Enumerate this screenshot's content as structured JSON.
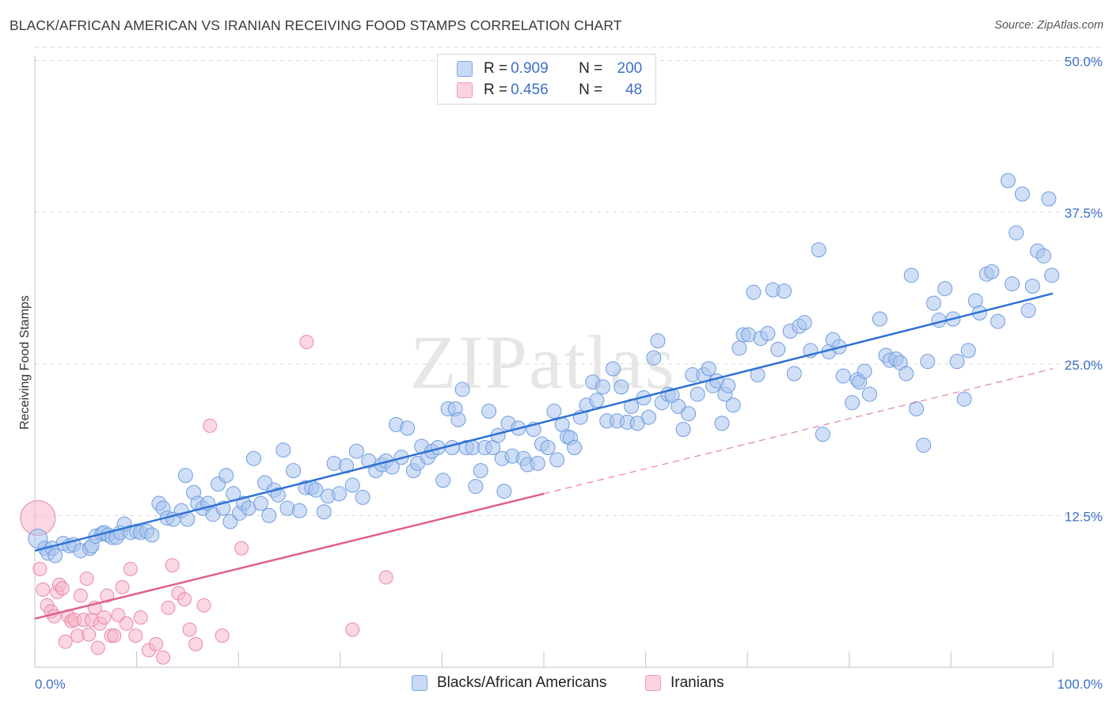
{
  "header": {
    "title": "BLACK/AFRICAN AMERICAN VS IRANIAN RECEIVING FOOD STAMPS CORRELATION CHART",
    "source": "Source: ZipAtlas.com"
  },
  "legend": {
    "rows": [
      {
        "r_label": "R = ",
        "r_value": "0.909",
        "n_label": "N = ",
        "n_value": "200",
        "color": "#a9c4ef"
      },
      {
        "r_label": "R = ",
        "r_value": "0.456",
        "n_label": "N = ",
        "n_value": "48",
        "color": "#f5b6c8"
      }
    ]
  },
  "bottom_legend": {
    "blacks": "Blacks/African Americans",
    "iranians": "Iranians"
  },
  "colors": {
    "blue_fill": "#a9c4ef",
    "blue_stroke": "#6f9ce0",
    "blue_line": "#2f72d6",
    "pink_fill": "#f5b6c8",
    "pink_stroke": "#e98aa8",
    "pink_line": "#e0608a",
    "tick_label": "#3d6fc8",
    "grid": "#d9d9d9"
  },
  "watermark": "ZIPatlas",
  "chart_data": {
    "type": "scatter",
    "title": "BLACK/AFRICAN AMERICAN VS IRANIAN RECEIVING FOOD STAMPS CORRELATION CHART",
    "xlabel": "",
    "ylabel": "Receiving Food Stamps",
    "xlim": [
      0,
      100
    ],
    "ylim": [
      0,
      52
    ],
    "x_tick_labels": [
      "0.0%",
      "100.0%"
    ],
    "y_ticks": [
      12.5,
      25.0,
      37.5,
      50.0
    ],
    "y_tick_labels": [
      "12.5%",
      "25.0%",
      "37.5%",
      "50.0%"
    ],
    "grid": true,
    "legend_position": "top-center",
    "series": [
      {
        "name": "Blacks/African Americans",
        "r": 0.909,
        "n": 200,
        "trend": {
          "x": [
            0,
            100
          ],
          "y": [
            9.6,
            30.8
          ],
          "style": "solid"
        },
        "points": [
          [
            0.3,
            10.6
          ],
          [
            1,
            9.8
          ],
          [
            1.3,
            9.4
          ],
          [
            1.7,
            9.8
          ],
          [
            2,
            9.2
          ],
          [
            2.8,
            10.2
          ],
          [
            3.4,
            10
          ],
          [
            3.8,
            10.1
          ],
          [
            4.5,
            9.6
          ],
          [
            5.4,
            9.8
          ],
          [
            5.6,
            10
          ],
          [
            6,
            10.8
          ],
          [
            6.6,
            11
          ],
          [
            6.8,
            11.1
          ],
          [
            7.2,
            10.9
          ],
          [
            7.6,
            10.7
          ],
          [
            8,
            10.7
          ],
          [
            8.4,
            11.1
          ],
          [
            8.8,
            11.8
          ],
          [
            9.4,
            11.1
          ],
          [
            10,
            11.2
          ],
          [
            10.4,
            11.1
          ],
          [
            11,
            11.2
          ],
          [
            11.5,
            10.9
          ],
          [
            12.2,
            13.5
          ],
          [
            12.6,
            13.1
          ],
          [
            13,
            12.3
          ],
          [
            13.6,
            12.2
          ],
          [
            14.4,
            12.9
          ],
          [
            14.8,
            15.8
          ],
          [
            15,
            12.2
          ],
          [
            15.6,
            14.4
          ],
          [
            16,
            13.5
          ],
          [
            16.5,
            13.1
          ],
          [
            17,
            13.5
          ],
          [
            17.5,
            12.6
          ],
          [
            18,
            15.1
          ],
          [
            18.5,
            13.1
          ],
          [
            18.8,
            15.8
          ],
          [
            19.2,
            12
          ],
          [
            19.5,
            14.3
          ],
          [
            20.1,
            12.7
          ],
          [
            20.5,
            13.5
          ],
          [
            21,
            13.1
          ],
          [
            21.5,
            17.2
          ],
          [
            22.2,
            13.5
          ],
          [
            22.6,
            15.2
          ],
          [
            23,
            12.5
          ],
          [
            23.5,
            14.6
          ],
          [
            23.9,
            14.2
          ],
          [
            24.4,
            17.9
          ],
          [
            24.8,
            13.1
          ],
          [
            25.4,
            16.2
          ],
          [
            26,
            12.9
          ],
          [
            26.6,
            14.8
          ],
          [
            27.2,
            14.8
          ],
          [
            27.6,
            14.6
          ],
          [
            28.4,
            12.8
          ],
          [
            28.8,
            14.1
          ],
          [
            29.4,
            16.8
          ],
          [
            29.9,
            14.3
          ],
          [
            30.6,
            16.6
          ],
          [
            31.2,
            15
          ],
          [
            31.6,
            17.8
          ],
          [
            32.2,
            14
          ],
          [
            32.8,
            17
          ],
          [
            33.5,
            16.2
          ],
          [
            34.1,
            16.7
          ],
          [
            34.5,
            17
          ],
          [
            35.1,
            16.5
          ],
          [
            35.5,
            20
          ],
          [
            36,
            17.3
          ],
          [
            36.6,
            19.7
          ],
          [
            37.2,
            16.2
          ],
          [
            37.6,
            16.8
          ],
          [
            38,
            18.2
          ],
          [
            38.6,
            17.3
          ],
          [
            39,
            17.8
          ],
          [
            39.6,
            18.1
          ],
          [
            40.1,
            15.4
          ],
          [
            40.6,
            21.3
          ],
          [
            41,
            18.1
          ],
          [
            41.3,
            21.3
          ],
          [
            41.6,
            20.4
          ],
          [
            42,
            22.9
          ],
          [
            42.4,
            18.1
          ],
          [
            43,
            18.1
          ],
          [
            43.3,
            14.9
          ],
          [
            43.8,
            16.2
          ],
          [
            44.2,
            18.1
          ],
          [
            44.6,
            21.1
          ],
          [
            45,
            18.1
          ],
          [
            45.5,
            19.1
          ],
          [
            45.9,
            17.2
          ],
          [
            46.1,
            14.5
          ],
          [
            46.5,
            20.1
          ],
          [
            46.9,
            17.4
          ],
          [
            47.5,
            19.7
          ],
          [
            48,
            17.2
          ],
          [
            48.4,
            16.7
          ],
          [
            49,
            19.6
          ],
          [
            49.4,
            16.8
          ],
          [
            49.8,
            18.4
          ],
          [
            50.4,
            18.1
          ],
          [
            51,
            21.1
          ],
          [
            51.3,
            17.1
          ],
          [
            51.8,
            20
          ],
          [
            52.3,
            19
          ],
          [
            52.6,
            18.9
          ],
          [
            53,
            18.1
          ],
          [
            53.6,
            20.6
          ],
          [
            54.2,
            21.6
          ],
          [
            54.8,
            23.5
          ],
          [
            55.2,
            22
          ],
          [
            55.8,
            23.1
          ],
          [
            56.2,
            20.3
          ],
          [
            56.8,
            24.6
          ],
          [
            57.2,
            20.3
          ],
          [
            57.6,
            23.1
          ],
          [
            58.2,
            20.2
          ],
          [
            58.6,
            21.5
          ],
          [
            59.2,
            20.1
          ],
          [
            59.8,
            22.2
          ],
          [
            60.3,
            20.6
          ],
          [
            60.8,
            25.5
          ],
          [
            61.2,
            26.9
          ],
          [
            61.6,
            21.8
          ],
          [
            62.2,
            22.5
          ],
          [
            62.6,
            22.4
          ],
          [
            63.2,
            21.5
          ],
          [
            63.7,
            19.6
          ],
          [
            64.2,
            20.9
          ],
          [
            64.6,
            24.1
          ],
          [
            65.1,
            22.5
          ],
          [
            65.7,
            24.1
          ],
          [
            66.2,
            24.6
          ],
          [
            66.6,
            23.2
          ],
          [
            67,
            23.6
          ],
          [
            67.5,
            20.1
          ],
          [
            67.8,
            22.5
          ],
          [
            68.1,
            23.2
          ],
          [
            68.6,
            21.6
          ],
          [
            69.2,
            26.3
          ],
          [
            69.6,
            27.4
          ],
          [
            70.1,
            27.4
          ],
          [
            70.6,
            30.9
          ],
          [
            71,
            24.1
          ],
          [
            71.3,
            27.1
          ],
          [
            72,
            27.5
          ],
          [
            72.5,
            31.1
          ],
          [
            73,
            26.2
          ],
          [
            73.6,
            31
          ],
          [
            74.2,
            27.7
          ],
          [
            74.6,
            24.2
          ],
          [
            75.1,
            28.1
          ],
          [
            75.6,
            28.4
          ],
          [
            76.2,
            26.1
          ],
          [
            77,
            34.4
          ],
          [
            77.4,
            19.2
          ],
          [
            78,
            26
          ],
          [
            78.4,
            27
          ],
          [
            79,
            26.4
          ],
          [
            79.4,
            24
          ],
          [
            80.3,
            21.8
          ],
          [
            80.8,
            23.7
          ],
          [
            81,
            23.5
          ],
          [
            81.5,
            24.4
          ],
          [
            82,
            22.5
          ],
          [
            83,
            28.7
          ],
          [
            83.6,
            25.7
          ],
          [
            84,
            25.3
          ],
          [
            84.6,
            25.4
          ],
          [
            85,
            25.1
          ],
          [
            85.6,
            24.2
          ],
          [
            86.1,
            32.3
          ],
          [
            86.6,
            21.3
          ],
          [
            87.3,
            18.3
          ],
          [
            87.7,
            25.2
          ],
          [
            88.3,
            30
          ],
          [
            88.8,
            28.6
          ],
          [
            89.4,
            31.2
          ],
          [
            90.2,
            28.7
          ],
          [
            90.6,
            25.2
          ],
          [
            91.3,
            22.1
          ],
          [
            91.7,
            26.1
          ],
          [
            92.4,
            30.2
          ],
          [
            92.8,
            29.2
          ],
          [
            93.5,
            32.4
          ],
          [
            94,
            32.6
          ],
          [
            94.6,
            28.5
          ],
          [
            95.6,
            40.1
          ],
          [
            96,
            31.6
          ],
          [
            96.4,
            35.8
          ],
          [
            97,
            39
          ],
          [
            97.6,
            29.4
          ],
          [
            98,
            31.4
          ],
          [
            98.5,
            34.3
          ],
          [
            99.1,
            33.9
          ],
          [
            99.6,
            38.6
          ],
          [
            99.9,
            32.3
          ]
        ]
      },
      {
        "name": "Iranians",
        "r": 0.456,
        "n": 48,
        "trend": {
          "x": [
            0,
            50
          ],
          "y": [
            4,
            14.3
          ],
          "style": "solid",
          "dashed_extension": {
            "x": [
              50,
              100
            ],
            "y": [
              14.3,
              24.6
            ]
          }
        },
        "points": [
          [
            0.3,
            12.3
          ],
          [
            0.5,
            8.1
          ],
          [
            0.8,
            6.4
          ],
          [
            1.2,
            5.1
          ],
          [
            1.6,
            4.6
          ],
          [
            1.9,
            4.2
          ],
          [
            2.2,
            6.2
          ],
          [
            2.4,
            6.8
          ],
          [
            2.7,
            6.5
          ],
          [
            3,
            2.1
          ],
          [
            3.3,
            4.2
          ],
          [
            3.6,
            3.8
          ],
          [
            3.9,
            3.9
          ],
          [
            4.2,
            2.6
          ],
          [
            4.5,
            5.9
          ],
          [
            4.8,
            3.9
          ],
          [
            5.1,
            7.3
          ],
          [
            5.3,
            2.7
          ],
          [
            5.6,
            3.9
          ],
          [
            5.9,
            4.9
          ],
          [
            6.2,
            1.6
          ],
          [
            6.4,
            3.6
          ],
          [
            6.8,
            4.1
          ],
          [
            7.1,
            5.9
          ],
          [
            7.5,
            2.6
          ],
          [
            7.8,
            2.6
          ],
          [
            8.2,
            4.3
          ],
          [
            8.6,
            6.6
          ],
          [
            9,
            3.6
          ],
          [
            9.4,
            8.1
          ],
          [
            9.9,
            2.6
          ],
          [
            10.4,
            4.1
          ],
          [
            11.2,
            1.4
          ],
          [
            11.9,
            1.9
          ],
          [
            12.6,
            0.8
          ],
          [
            13.1,
            4.9
          ],
          [
            13.5,
            8.4
          ],
          [
            14.1,
            6.1
          ],
          [
            14.7,
            5.6
          ],
          [
            15.2,
            3.1
          ],
          [
            15.8,
            1.9
          ],
          [
            16.6,
            5.1
          ],
          [
            17.2,
            19.9
          ],
          [
            18.4,
            2.6
          ],
          [
            20.3,
            9.8
          ],
          [
            26.7,
            26.8
          ],
          [
            31.2,
            3.1
          ],
          [
            34.5,
            7.4
          ]
        ]
      }
    ]
  }
}
